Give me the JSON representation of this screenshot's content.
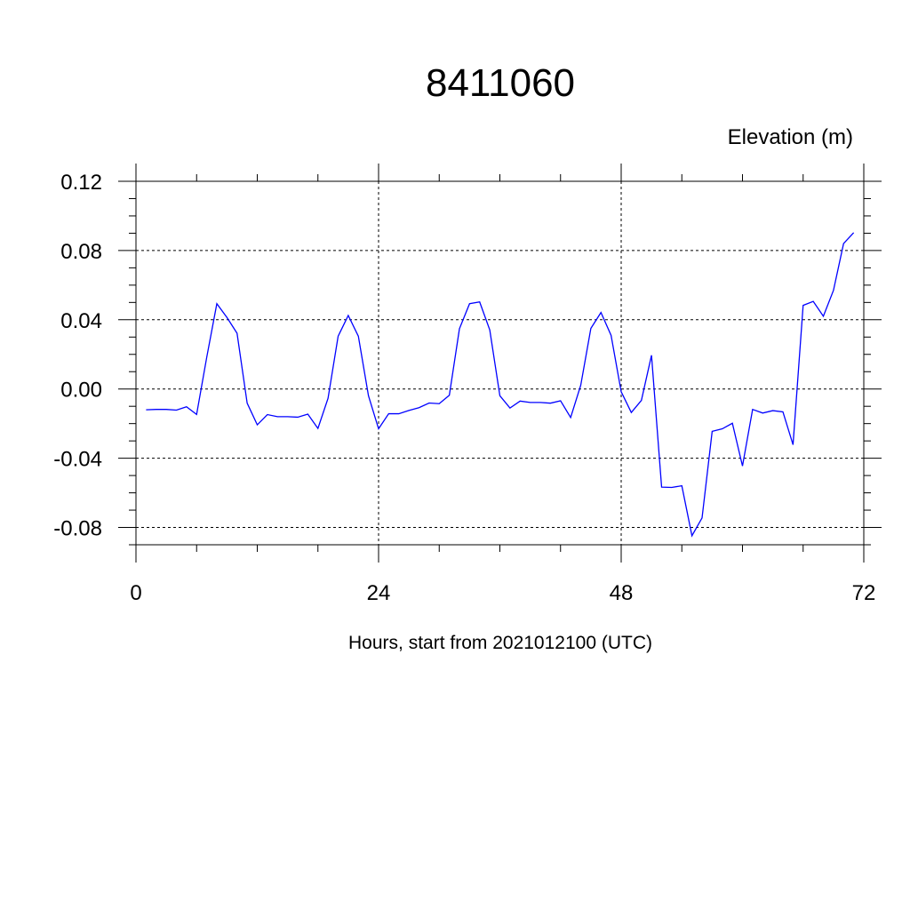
{
  "chart_data": {
    "type": "line",
    "title": "8411060",
    "ylabel": "Elevation (m)",
    "xlabel": "Hours, start from 2021012100 (UTC)",
    "xlim": [
      0,
      72
    ],
    "ylim": [
      -0.09,
      0.12
    ],
    "x_ticks": [
      0,
      24,
      48,
      72
    ],
    "x_tick_labels": [
      "0",
      "24",
      "48",
      "72"
    ],
    "y_ticks": [
      0.12,
      0.08,
      0.04,
      0.0,
      -0.04,
      -0.08
    ],
    "y_tick_labels": [
      "0.12",
      "0.08",
      "0.04",
      "0.00",
      "-0.04",
      "-0.08"
    ],
    "grid": true,
    "legend": "none",
    "line_color": "#0000ff",
    "series": [
      {
        "x": [
          1,
          2,
          3,
          4,
          5,
          6,
          7,
          8,
          9,
          10,
          11,
          12,
          13,
          14,
          15,
          16,
          17,
          18,
          19,
          20,
          21,
          22,
          23,
          24,
          25,
          26,
          27,
          28,
          29,
          30,
          31,
          32,
          33,
          34,
          35,
          36,
          37,
          38,
          39,
          40,
          41,
          42,
          43,
          44,
          45,
          46,
          47,
          48,
          49,
          50,
          51,
          52,
          53,
          54,
          55,
          56,
          57,
          58,
          59,
          60,
          61,
          62,
          63,
          64,
          65,
          66,
          67,
          68,
          69,
          70,
          71
        ],
        "values": [
          -0.012,
          -0.0118,
          -0.0118,
          -0.0122,
          -0.0103,
          -0.0147,
          0.0183,
          0.0493,
          0.0413,
          0.0322,
          -0.0082,
          -0.0207,
          -0.0148,
          -0.016,
          -0.016,
          -0.0163,
          -0.0145,
          -0.0228,
          -0.0054,
          0.0305,
          0.0425,
          0.0305,
          -0.0039,
          -0.023,
          -0.0143,
          -0.0143,
          -0.0124,
          -0.0108,
          -0.0081,
          -0.0085,
          -0.0036,
          0.0348,
          0.0493,
          0.0503,
          0.0341,
          -0.0039,
          -0.011,
          -0.007,
          -0.0078,
          -0.0078,
          -0.0082,
          -0.0068,
          -0.0165,
          0.0022,
          0.035,
          0.0442,
          0.031,
          -0.0016,
          -0.0136,
          -0.0066,
          0.0195,
          -0.0567,
          -0.0569,
          -0.0559,
          -0.0848,
          -0.0745,
          -0.0245,
          -0.023,
          -0.0198,
          -0.0445,
          -0.0118,
          -0.0139,
          -0.0125,
          -0.0132,
          -0.0322,
          0.0483,
          0.0506,
          0.042,
          0.057,
          0.084,
          0.0903
        ]
      }
    ]
  }
}
